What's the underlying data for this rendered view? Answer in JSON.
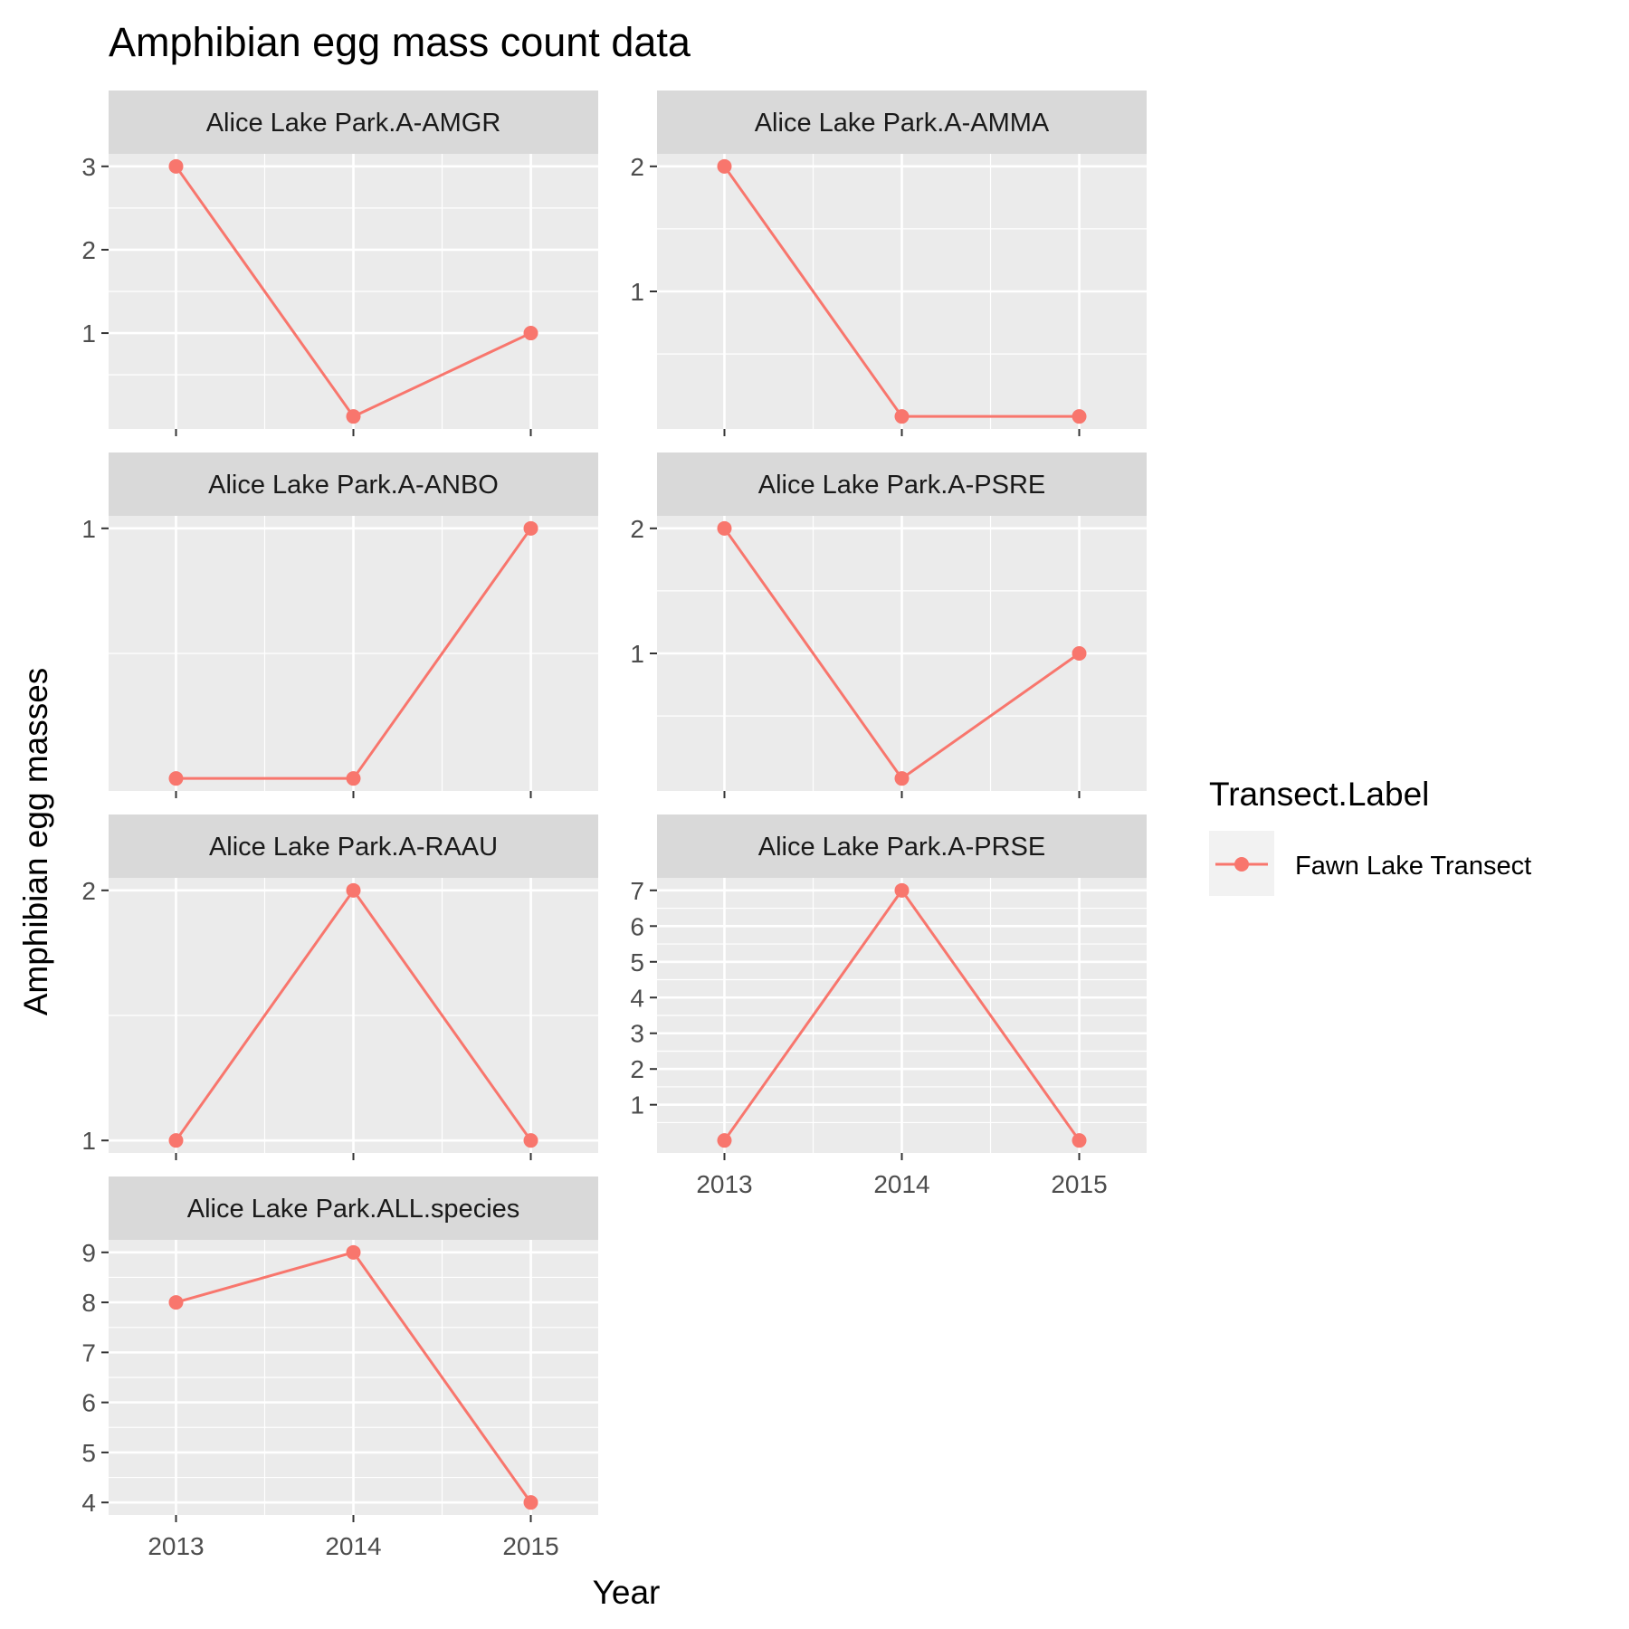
{
  "chart_data": {
    "type": "line",
    "title": "Amphibian egg mass count data",
    "xlabel": "Year",
    "ylabel": "Amphibian egg masses",
    "x": [
      2013,
      2014,
      2015
    ],
    "x_tick_labels": [
      "2013",
      "2014",
      "2015"
    ],
    "legend": {
      "title": "Transect.Label",
      "placement": "right",
      "entries": [
        {
          "label": "Fawn Lake Transect",
          "color": "#F8766D"
        }
      ]
    },
    "series_color": "#F8766D",
    "grid": true,
    "panels": [
      {
        "strip": "Alice Lake Park.A-AMGR",
        "values": [
          3,
          0,
          1
        ],
        "ylim": [
          -0.15,
          3.15
        ],
        "y_ticks": [
          1,
          2,
          3
        ]
      },
      {
        "strip": "Alice Lake Park.A-AMMA",
        "values": [
          2,
          0,
          0
        ],
        "ylim": [
          -0.1,
          2.1
        ],
        "y_ticks": [
          1,
          2
        ]
      },
      {
        "strip": "Alice Lake Park.A-ANBO",
        "values": [
          0,
          0,
          1
        ],
        "ylim": [
          -0.05,
          1.05
        ],
        "y_ticks": [
          1
        ]
      },
      {
        "strip": "Alice Lake Park.A-PSRE",
        "values": [
          2,
          0,
          1
        ],
        "ylim": [
          -0.1,
          2.1
        ],
        "y_ticks": [
          1,
          2
        ]
      },
      {
        "strip": "Alice Lake Park.A-RAAU",
        "values": [
          1,
          2,
          1
        ],
        "ylim": [
          0.95,
          2.05
        ],
        "y_ticks": [
          1,
          2
        ]
      },
      {
        "strip": "Alice Lake Park.A-PRSE",
        "values": [
          0,
          7,
          0
        ],
        "ylim": [
          -0.35,
          7.35
        ],
        "y_ticks": [
          1,
          2,
          3,
          4,
          5,
          6,
          7
        ]
      },
      {
        "strip": "Alice Lake Park.ALL.species",
        "values": [
          8,
          9,
          4
        ],
        "ylim": [
          3.75,
          9.25
        ],
        "y_ticks": [
          4,
          5,
          6,
          7,
          8,
          9
        ]
      }
    ]
  }
}
